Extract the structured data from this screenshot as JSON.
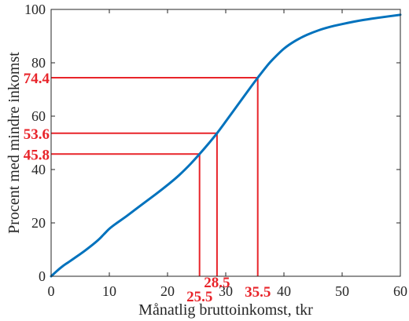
{
  "chart_data": {
    "type": "line",
    "xlabel": "Månatlig bruttoinkomst, tkr",
    "ylabel": "Procent med mindre inkomst",
    "xlim": [
      0,
      60
    ],
    "ylim": [
      0,
      100
    ],
    "xticks": [
      0,
      10,
      20,
      30,
      40,
      50,
      60
    ],
    "yticks": [
      0,
      20,
      40,
      60,
      80,
      100
    ],
    "grid": false,
    "series": [
      {
        "color": "#0072BD",
        "x": [
          0,
          1,
          2,
          3,
          4,
          6,
          8,
          9,
          10,
          11,
          13,
          15,
          18,
          20,
          22,
          24,
          25.5,
          27,
          28.5,
          30,
          32,
          34,
          35.5,
          37,
          38,
          40,
          42,
          44,
          46,
          48,
          50,
          52,
          55,
          58,
          60
        ],
        "y": [
          0,
          2,
          3.8,
          5.3,
          6.8,
          9.9,
          13.4,
          15.6,
          17.8,
          19.5,
          22.6,
          25.9,
          30.8,
          34.2,
          37.9,
          42.2,
          45.8,
          49.6,
          53.6,
          58,
          64,
          70,
          74.4,
          78.6,
          81.1,
          85.3,
          88.3,
          90.5,
          92.2,
          93.5,
          94.5,
          95.4,
          96.5,
          97.4,
          98
        ]
      }
    ],
    "reference_color": "#e8242a",
    "reference_lines": [
      {
        "x": 25.5,
        "y": 45.8
      },
      {
        "x": 28.5,
        "y": 53.6
      },
      {
        "x": 35.5,
        "y": 74.4
      }
    ]
  }
}
